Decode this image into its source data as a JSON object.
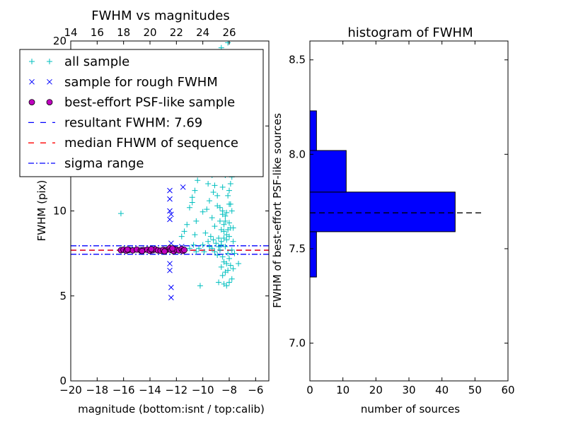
{
  "chart_data": [
    {
      "type": "scatter",
      "title": "FWHM vs magnitudes",
      "xlabel": "magnitude (bottom:isnt / top:calib)",
      "ylabel": "FWHM (pix)",
      "xlim": [
        -20,
        -5
      ],
      "ylim": [
        0,
        20
      ],
      "x_ticks": [
        -20,
        -18,
        -16,
        -14,
        -12,
        -10,
        -8,
        -6
      ],
      "x_tick_labels": [
        "−20",
        "−18",
        "−16",
        "−14",
        "−12",
        "−10",
        "−8",
        "−6"
      ],
      "y_ticks": [
        0,
        5,
        10,
        15,
        20
      ],
      "y_tick_labels": [
        "0",
        "5",
        "10",
        "15",
        "20"
      ],
      "top_axis": {
        "offset": 34,
        "ticks": [
          14,
          16,
          18,
          20,
          22,
          24,
          26
        ],
        "tick_labels": [
          "14",
          "16",
          "18",
          "20",
          "22",
          "24",
          "26"
        ]
      },
      "legend": {
        "location": "upper-left",
        "entries": [
          {
            "label": "all sample",
            "marker": "plus",
            "color": "#00bfbf"
          },
          {
            "label": "sample for rough FWHM",
            "marker": "x",
            "color": "#0000ff"
          },
          {
            "label": "best-effort PSF-like sample",
            "marker": "circle",
            "color": "#bf00bf"
          },
          {
            "label": "resultant FWHM: 7.69",
            "marker": "dashed-line",
            "color": "#0000ff"
          },
          {
            "label": "median FHWM of sequence",
            "marker": "dashed-line",
            "color": "#ff0000"
          },
          {
            "label": "sigma range",
            "marker": "dashdot-line",
            "color": "#0000ff"
          }
        ]
      },
      "hlines": [
        {
          "y": 7.69,
          "style": "dashed",
          "color": "#0000ff"
        },
        {
          "y": 7.69,
          "style": "dashed",
          "color": "#ff0000"
        },
        {
          "y": 7.95,
          "style": "dashdot",
          "color": "#0000ff"
        },
        {
          "y": 7.45,
          "style": "dashdot",
          "color": "#0000ff"
        }
      ],
      "series": [
        {
          "name": "all sample",
          "marker": "plus",
          "color": "#00bfbf",
          "points": [
            [
              -16.2,
              9.85
            ],
            [
              -10.2,
              5.6
            ],
            [
              -10.0,
              9.95
            ],
            [
              -10.6,
              8.6
            ],
            [
              -10.8,
              10.5
            ],
            [
              -10.5,
              9.4
            ],
            [
              -9.8,
              12.3
            ],
            [
              -9.6,
              11.6
            ],
            [
              -9.4,
              12.6
            ],
            [
              -9.3,
              13.6
            ],
            [
              -9.2,
              11.1
            ],
            [
              -9.1,
              12.3
            ],
            [
              -9.0,
              13.7
            ],
            [
              -8.9,
              14.3
            ],
            [
              -8.8,
              12.5
            ],
            [
              -8.7,
              13.0
            ],
            [
              -8.6,
              14.2
            ],
            [
              -8.5,
              11.4
            ],
            [
              -8.4,
              13.5
            ],
            [
              -8.3,
              12.1
            ],
            [
              -8.2,
              13.3
            ],
            [
              -8.1,
              12.8
            ],
            [
              -8.0,
              11.2
            ],
            [
              -7.9,
              10.4
            ],
            [
              -9.7,
              10.1
            ],
            [
              -9.5,
              10.6
            ],
            [
              -9.3,
              9.6
            ],
            [
              -9.1,
              9.1
            ],
            [
              -8.9,
              10.3
            ],
            [
              -8.7,
              9.4
            ],
            [
              -8.5,
              10.0
            ],
            [
              -8.3,
              9.7
            ],
            [
              -8.1,
              10.9
            ],
            [
              -8.0,
              9.3
            ],
            [
              -7.9,
              9.0
            ],
            [
              -8.2,
              8.6
            ],
            [
              -8.4,
              8.8
            ],
            [
              -8.6,
              8.2
            ],
            [
              -8.8,
              8.4
            ],
            [
              -9.0,
              8.1
            ],
            [
              -9.2,
              8.3
            ],
            [
              -9.4,
              8.5
            ],
            [
              -9.6,
              8.2
            ],
            [
              -9.8,
              8.7
            ],
            [
              -10.0,
              8.0
            ],
            [
              -8.3,
              7.9
            ],
            [
              -8.1,
              7.5
            ],
            [
              -8.5,
              7.3
            ],
            [
              -8.7,
              7.7
            ],
            [
              -8.9,
              7.4
            ],
            [
              -9.1,
              7.6
            ],
            [
              -8.0,
              7.2
            ],
            [
              -7.8,
              7.7
            ],
            [
              -8.2,
              6.9
            ],
            [
              -8.4,
              7.0
            ],
            [
              -8.6,
              6.7
            ],
            [
              -8.1,
              6.5
            ],
            [
              -7.9,
              6.8
            ],
            [
              -8.3,
              6.4
            ],
            [
              -7.7,
              6.6
            ],
            [
              -8.5,
              6.2
            ],
            [
              -7.8,
              6.0
            ],
            [
              -8.0,
              5.8
            ],
            [
              -8.2,
              5.6
            ],
            [
              -8.4,
              5.7
            ],
            [
              -8.8,
              5.8
            ],
            [
              -7.3,
              6.9
            ],
            [
              -8.6,
              8.9
            ],
            [
              -8.4,
              9.2
            ],
            [
              -8.2,
              9.9
            ],
            [
              -8.0,
              10.4
            ],
            [
              -7.9,
              11.6
            ],
            [
              -8.1,
              12.4
            ],
            [
              -8.3,
              13.4
            ],
            [
              -8.5,
              14.8
            ],
            [
              -8.7,
              15.4
            ],
            [
              -8.9,
              15.9
            ],
            [
              -9.1,
              15.2
            ],
            [
              -9.3,
              14.6
            ],
            [
              -9.5,
              13.9
            ],
            [
              -8.6,
              16.8
            ],
            [
              -8.4,
              17.5
            ],
            [
              -8.2,
              18.3
            ],
            [
              -8.3,
              19.1
            ],
            [
              -8.6,
              19.6
            ],
            [
              -8.1,
              19.9
            ],
            [
              -9.0,
              18.6
            ],
            [
              -8.8,
              17.6
            ],
            [
              -9.2,
              17.0
            ],
            [
              -9.4,
              16.3
            ],
            [
              -9.6,
              15.6
            ],
            [
              -9.8,
              14.6
            ],
            [
              -10.0,
              13.6
            ],
            [
              -10.2,
              12.6
            ],
            [
              -10.4,
              11.8
            ],
            [
              -10.6,
              11.2
            ],
            [
              -10.8,
              10.8
            ],
            [
              -11.0,
              10.2
            ],
            [
              -11.2,
              9.2
            ],
            [
              -11.4,
              8.8
            ],
            [
              -11.6,
              8.5
            ],
            [
              -10.7,
              8.0
            ],
            [
              -10.3,
              7.8
            ],
            [
              -9.5,
              7.9
            ],
            [
              -9.9,
              7.6
            ],
            [
              -11.0,
              7.8
            ],
            [
              -11.3,
              7.7
            ],
            [
              -11.8,
              7.7
            ],
            [
              -10.5,
              7.6
            ],
            [
              -9.3,
              7.8
            ],
            [
              -8.8,
              7.9
            ],
            [
              -8.6,
              8.0
            ],
            [
              -8.4,
              8.4
            ],
            [
              -8.2,
              8.3
            ],
            [
              -8.0,
              8.5
            ],
            [
              -8.1,
              8.9
            ],
            [
              -8.3,
              9.4
            ],
            [
              -8.5,
              9.8
            ],
            [
              -8.7,
              10.2
            ],
            [
              -8.9,
              10.9
            ],
            [
              -9.1,
              11.5
            ],
            [
              -9.3,
              12.1
            ],
            [
              -9.5,
              12.8
            ],
            [
              -9.7,
              13.2
            ],
            [
              -9.9,
              13.8
            ],
            [
              -8.2,
              14.0
            ],
            [
              -8.4,
              14.5
            ],
            [
              -8.6,
              15.0
            ],
            [
              -8.8,
              15.5
            ],
            [
              -8.0,
              15.8
            ],
            [
              -8.2,
              16.4
            ],
            [
              -8.4,
              16.9
            ],
            [
              -8.0,
              17.2
            ],
            [
              -7.9,
              13.0
            ],
            [
              -7.8,
              12.0
            ],
            [
              -7.8,
              10.0
            ],
            [
              -7.7,
              9.0
            ],
            [
              -7.7,
              8.2
            ],
            [
              -7.6,
              7.5
            ]
          ]
        },
        {
          "name": "sample for rough FWHM",
          "marker": "x",
          "color": "#0000ff",
          "points": [
            [
              -12.5,
              11.2
            ],
            [
              -12.5,
              10.7
            ],
            [
              -12.5,
              10.0
            ],
            [
              -12.4,
              9.8
            ],
            [
              -12.5,
              9.5
            ],
            [
              -12.4,
              8.1
            ],
            [
              -12.5,
              6.9
            ],
            [
              -12.5,
              6.5
            ],
            [
              -12.4,
              5.5
            ],
            [
              -12.4,
              4.9
            ],
            [
              -11.5,
              11.4
            ],
            [
              -11.5,
              7.7
            ],
            [
              -11.6,
              7.9
            ],
            [
              -12.2,
              7.8
            ],
            [
              -12.0,
              7.7
            ],
            [
              -11.8,
              7.75
            ],
            [
              -16.0,
              7.7
            ],
            [
              -15.5,
              7.75
            ],
            [
              -15.0,
              7.7
            ],
            [
              -14.5,
              7.72
            ],
            [
              -14.0,
              7.68
            ],
            [
              -13.5,
              7.71
            ],
            [
              -13.0,
              7.66
            ],
            [
              -12.6,
              7.7
            ]
          ]
        },
        {
          "name": "best-effort PSF-like sample",
          "marker": "circle",
          "color": "#bf00bf",
          "points": [
            [
              -16.2,
              7.69
            ],
            [
              -16.0,
              7.72
            ],
            [
              -15.8,
              7.66
            ],
            [
              -15.6,
              7.71
            ],
            [
              -15.3,
              7.68
            ],
            [
              -15.0,
              7.73
            ],
            [
              -14.7,
              7.67
            ],
            [
              -14.5,
              7.7
            ],
            [
              -14.2,
              7.72
            ],
            [
              -14.0,
              7.65
            ],
            [
              -13.8,
              7.69
            ],
            [
              -13.6,
              7.74
            ],
            [
              -13.4,
              7.68
            ],
            [
              -13.2,
              7.66
            ],
            [
              -13.0,
              7.71
            ],
            [
              -12.8,
              7.69
            ],
            [
              -12.6,
              7.74
            ],
            [
              -12.5,
              7.82
            ],
            [
              -12.4,
              7.7
            ],
            [
              -12.2,
              7.63
            ],
            [
              -12.0,
              7.72
            ],
            [
              -11.8,
              7.68
            ],
            [
              -11.6,
              7.76
            ],
            [
              -11.5,
              7.65
            ],
            [
              -11.4,
              7.7
            ],
            [
              -14.6,
              7.64
            ],
            [
              -13.9,
              7.75
            ],
            [
              -15.7,
              7.73
            ],
            [
              -12.9,
              7.62
            ],
            [
              -12.3,
              7.79
            ]
          ]
        }
      ]
    },
    {
      "type": "bar",
      "orientation": "horizontal",
      "title": "histogram of FWHM",
      "xlabel": "number of sources",
      "ylabel": "FWHM of best-effort PSF-like sources",
      "xlim": [
        0,
        60
      ],
      "ylim": [
        6.8,
        8.6
      ],
      "x_ticks": [
        0,
        10,
        20,
        30,
        40,
        50,
        60
      ],
      "x_tick_labels": [
        "0",
        "10",
        "20",
        "30",
        "40",
        "50",
        "60"
      ],
      "y_ticks": [
        7.0,
        7.5,
        8.0,
        8.5
      ],
      "y_tick_labels": [
        "7.0",
        "7.5",
        "8.0",
        "8.5"
      ],
      "bar_color": "#0000ff",
      "bins": [
        {
          "y0": 7.35,
          "y1": 7.59,
          "count": 2
        },
        {
          "y0": 7.59,
          "y1": 7.8,
          "count": 44
        },
        {
          "y0": 7.8,
          "y1": 8.02,
          "count": 11
        },
        {
          "y0": 8.02,
          "y1": 8.23,
          "count": 2
        }
      ],
      "hline": {
        "y": 7.69,
        "style": "dashed",
        "color": "#000000",
        "x_end": 52
      }
    }
  ]
}
